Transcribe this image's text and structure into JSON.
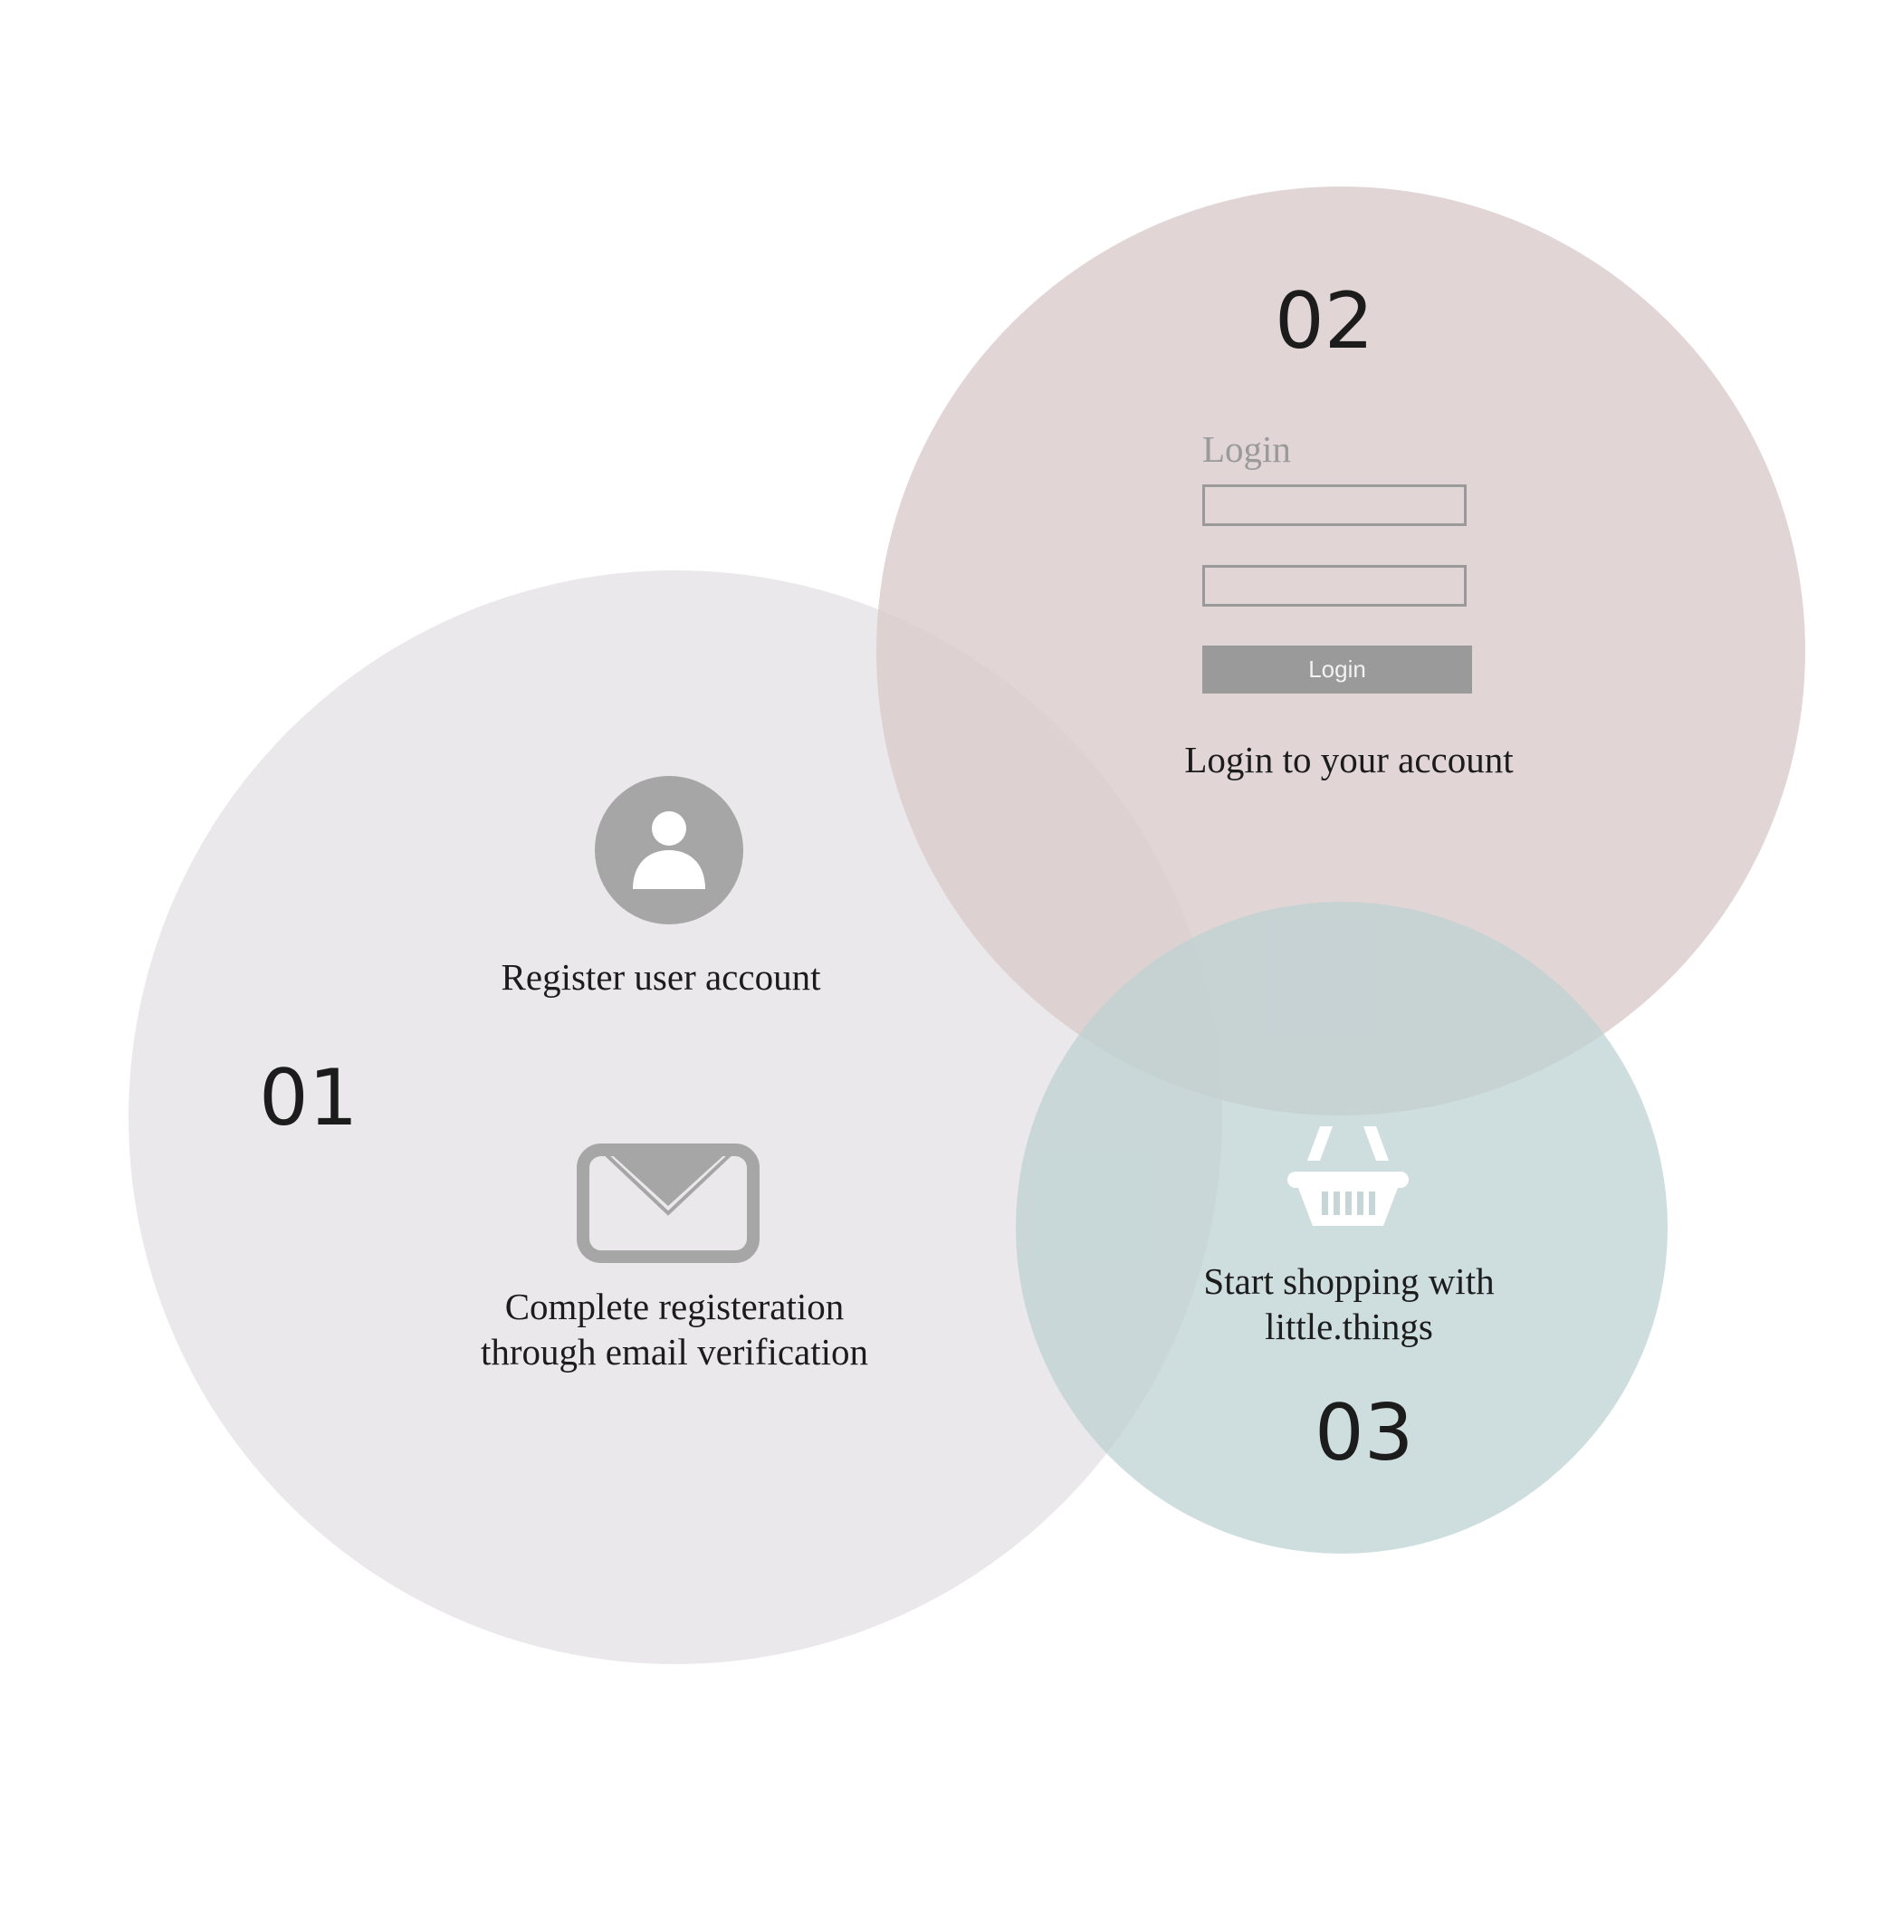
{
  "steps": [
    {
      "number": "01",
      "items": [
        {
          "icon": "user-avatar-icon",
          "caption": "Register user account"
        },
        {
          "icon": "envelope-icon",
          "caption": "Complete registeration\nthrough email verification"
        }
      ]
    },
    {
      "number": "02",
      "login_form": {
        "title": "Login",
        "username_value": "",
        "password_value": "",
        "button_label": "Login"
      },
      "caption": "Login to your account"
    },
    {
      "number": "03",
      "icon": "shopping-basket-icon",
      "caption": "Start shopping with\nlittle.things"
    }
  ],
  "colors": {
    "circle_1": "#e8e5e8",
    "circle_2": "#dacaca",
    "circle_3": "#bdd1d2",
    "icon_gray": "#a6a6a6",
    "button_gray": "#9a9a9a",
    "text": "#1c1c1c"
  }
}
